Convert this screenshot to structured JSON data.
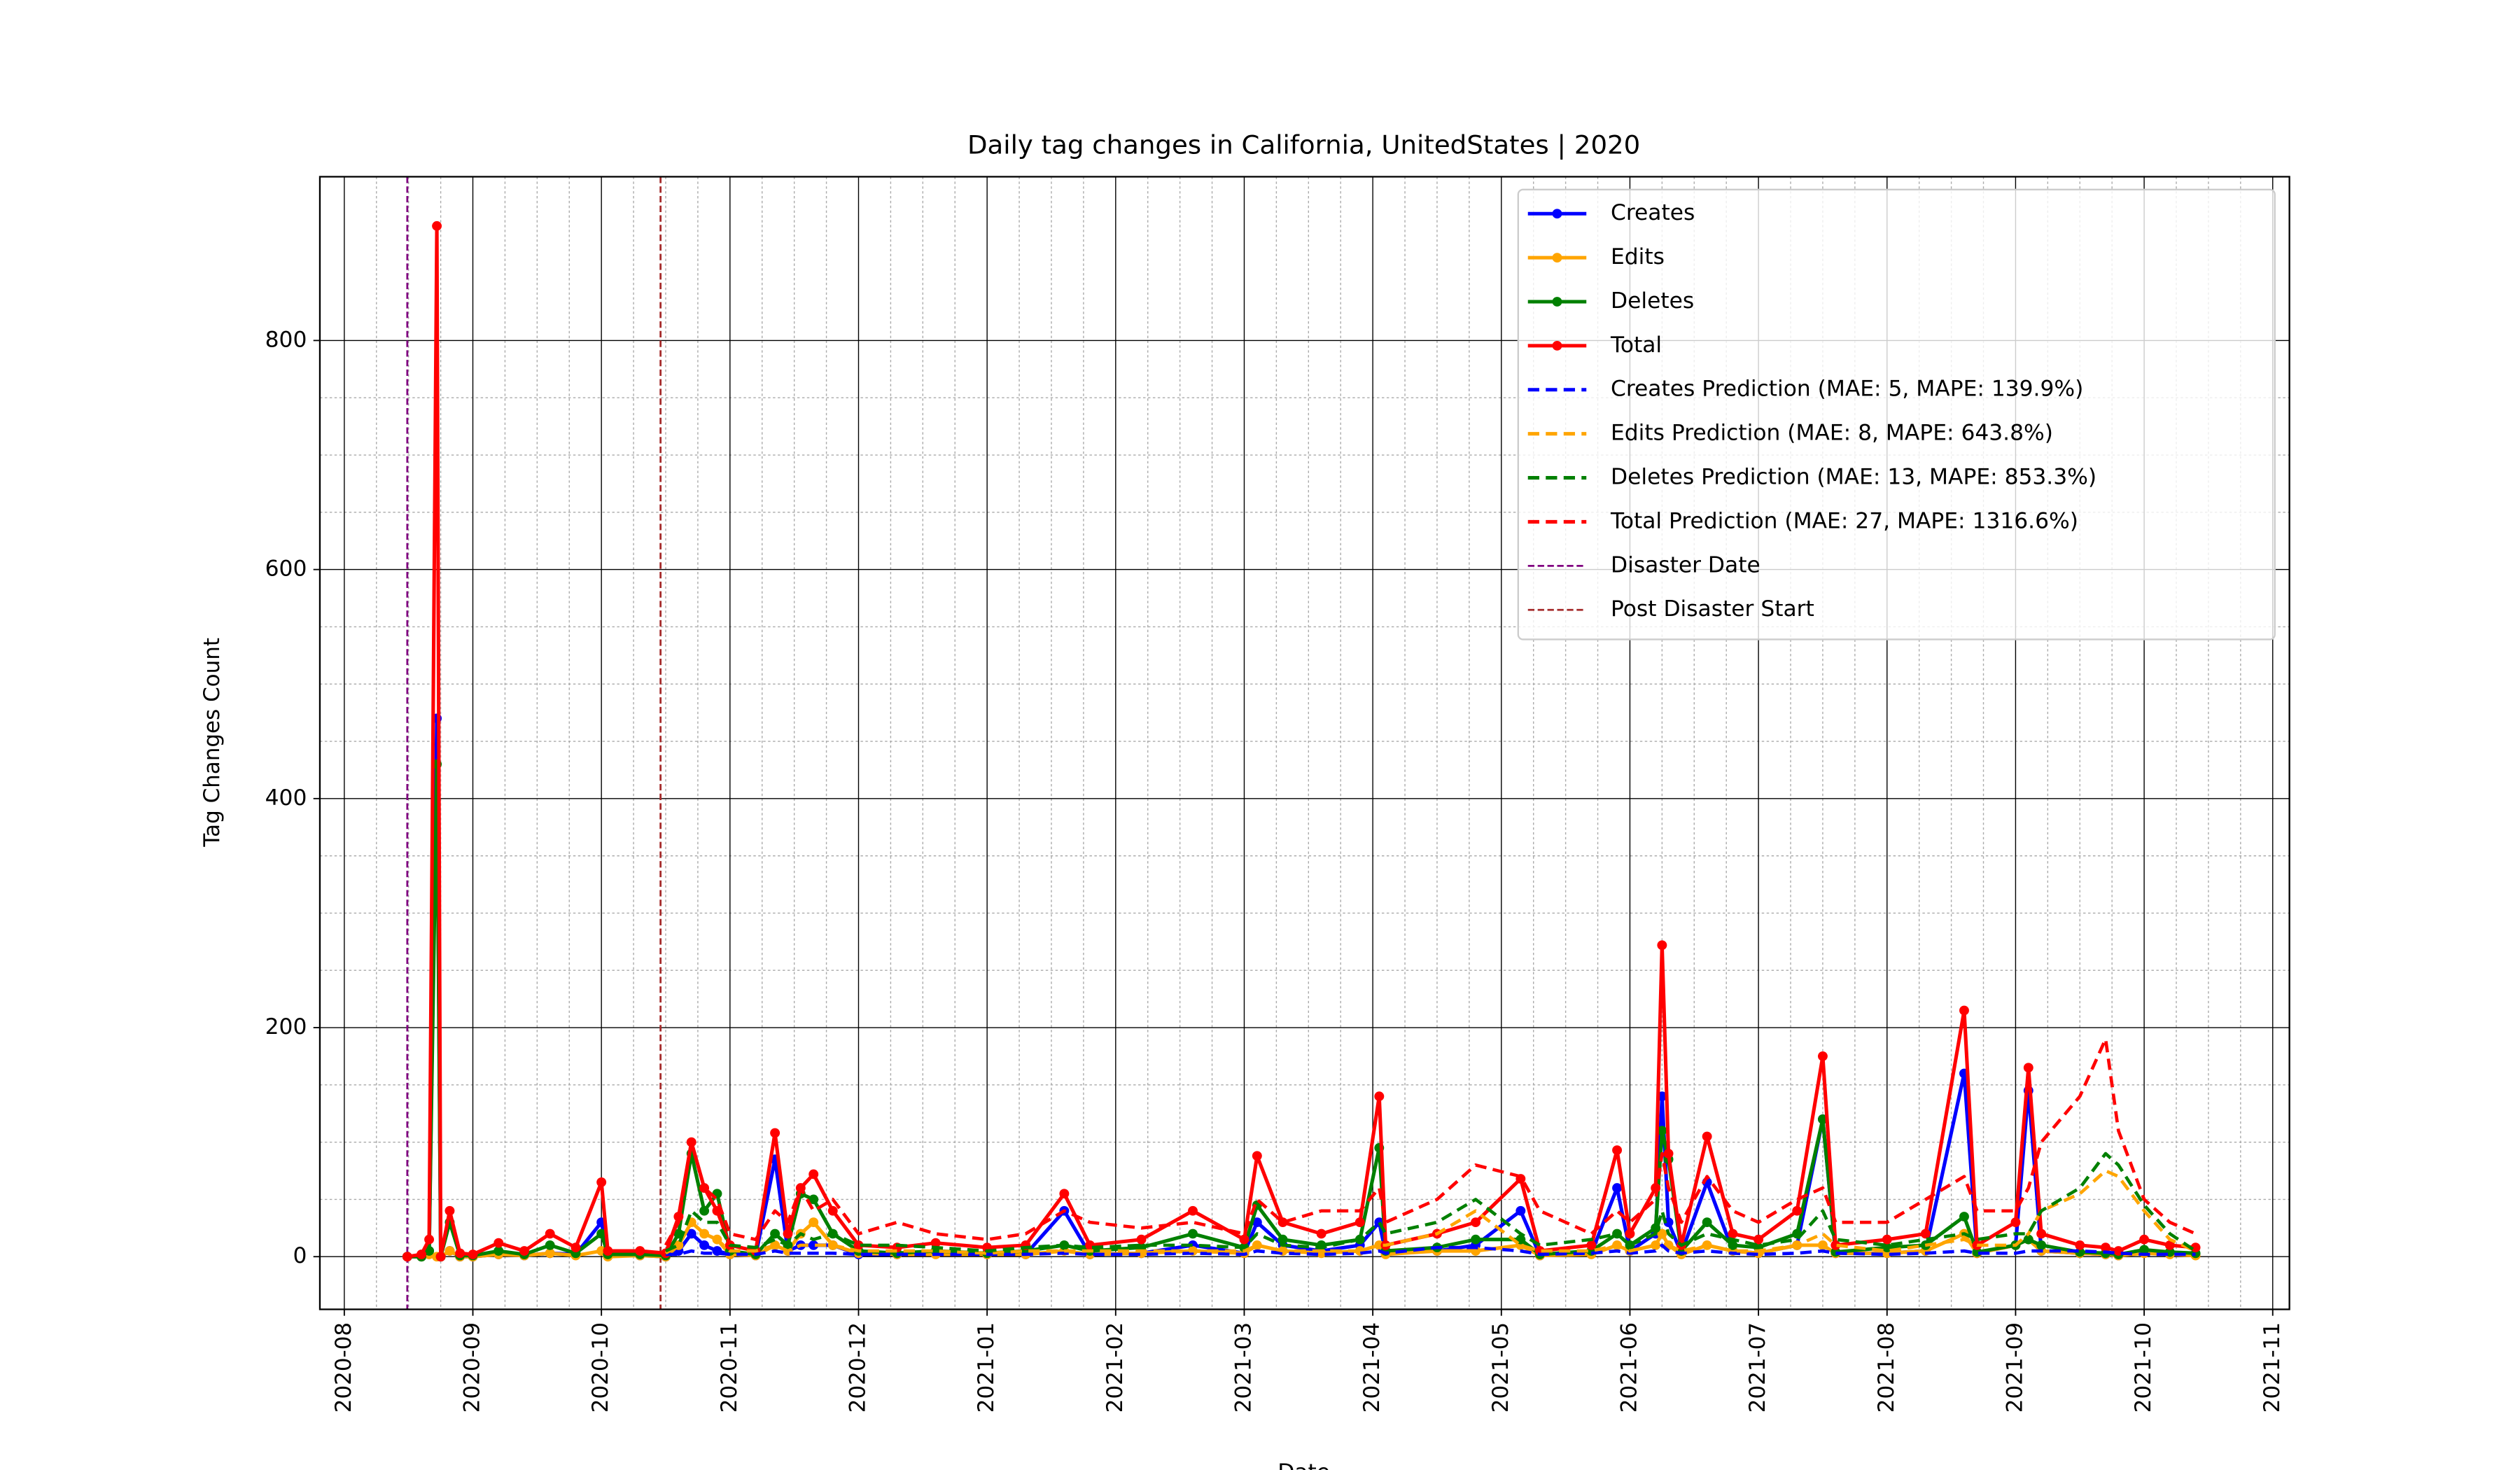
{
  "chart_data": {
    "type": "line",
    "title": "Daily tag changes in California, UnitedStates | 2020",
    "xlabel": "Date",
    "ylabel": "Tag Changes Count",
    "x": [
      0.49,
      0.6,
      0.66,
      0.72,
      0.75,
      0.82,
      0.9,
      1.0,
      1.2,
      1.4,
      1.6,
      1.8,
      2.0,
      2.05,
      2.3,
      2.5,
      2.6,
      2.7,
      2.8,
      2.9,
      3.0,
      3.2,
      3.35,
      3.45,
      3.55,
      3.65,
      3.8,
      4.0,
      4.3,
      4.6,
      5.0,
      5.3,
      5.6,
      5.8,
      6.2,
      6.6,
      7.0,
      7.1,
      7.3,
      7.6,
      7.9,
      8.05,
      8.1,
      8.5,
      8.8,
      9.15,
      9.3,
      9.7,
      9.9,
      10.0,
      10.2,
      10.25,
      10.3,
      10.4,
      10.6,
      10.8,
      11.0,
      11.3,
      11.5,
      11.6,
      12.0,
      12.3,
      12.6,
      12.7,
      13.0,
      13.1,
      13.2,
      13.5,
      13.7,
      13.8,
      14.0,
      14.2,
      14.4
    ],
    "series": [
      {
        "name": "Creates",
        "color": "blue",
        "style": "solid",
        "values": [
          0,
          0,
          5,
          470,
          0,
          5,
          0,
          0,
          2,
          1,
          3,
          2,
          30,
          1,
          1,
          0,
          5,
          20,
          10,
          5,
          2,
          1,
          85,
          5,
          10,
          10,
          10,
          2,
          2,
          3,
          2,
          2,
          40,
          2,
          3,
          10,
          3,
          30,
          10,
          5,
          10,
          30,
          3,
          5,
          10,
          40,
          1,
          3,
          60,
          5,
          20,
          140,
          30,
          3,
          65,
          5,
          3,
          10,
          120,
          3,
          3,
          5,
          160,
          3,
          10,
          145,
          5,
          3,
          2,
          1,
          5,
          3,
          2
        ]
      },
      {
        "name": "Edits",
        "color": "orange",
        "style": "solid",
        "values": [
          0,
          0,
          2,
          0,
          0,
          5,
          0,
          0,
          2,
          1,
          3,
          1,
          5,
          0,
          1,
          0,
          10,
          30,
          20,
          15,
          2,
          1,
          10,
          5,
          20,
          30,
          10,
          3,
          2,
          2,
          2,
          2,
          5,
          2,
          3,
          5,
          3,
          10,
          5,
          3,
          5,
          10,
          2,
          5,
          5,
          10,
          1,
          2,
          10,
          5,
          10,
          20,
          10,
          2,
          10,
          5,
          3,
          10,
          10,
          3,
          3,
          5,
          20,
          3,
          10,
          15,
          5,
          3,
          2,
          1,
          3,
          2,
          1
        ]
      },
      {
        "name": "Deletes",
        "color": "green",
        "style": "solid",
        "values": [
          0,
          0,
          5,
          430,
          0,
          30,
          1,
          1,
          5,
          2,
          10,
          3,
          20,
          2,
          2,
          1,
          20,
          90,
          40,
          55,
          5,
          2,
          20,
          10,
          55,
          50,
          20,
          5,
          3,
          5,
          3,
          5,
          10,
          5,
          8,
          20,
          8,
          45,
          15,
          10,
          15,
          95,
          5,
          8,
          15,
          15,
          2,
          5,
          20,
          10,
          25,
          110,
          85,
          5,
          30,
          10,
          8,
          20,
          120,
          4,
          8,
          10,
          35,
          4,
          10,
          15,
          10,
          4,
          3,
          2,
          6,
          4,
          3
        ]
      },
      {
        "name": "Total",
        "color": "red",
        "style": "solid",
        "values": [
          0,
          2,
          15,
          900,
          0,
          40,
          3,
          2,
          12,
          5,
          20,
          8,
          65,
          5,
          5,
          3,
          35,
          100,
          60,
          40,
          10,
          5,
          108,
          20,
          60,
          72,
          40,
          10,
          8,
          12,
          8,
          10,
          55,
          10,
          15,
          40,
          15,
          88,
          30,
          20,
          30,
          140,
          10,
          20,
          30,
          68,
          5,
          10,
          93,
          20,
          60,
          272,
          90,
          10,
          105,
          20,
          15,
          40,
          175,
          10,
          15,
          20,
          215,
          10,
          30,
          165,
          20,
          10,
          8,
          5,
          15,
          10,
          8
        ]
      },
      {
        "name": "Creates Prediction (MAE: 5, MAPE: 139.9%)",
        "color": "blue",
        "style": "dashed",
        "values": [
          null,
          null,
          null,
          null,
          null,
          null,
          null,
          null,
          null,
          null,
          null,
          null,
          null,
          null,
          null,
          2,
          2,
          5,
          3,
          3,
          2,
          2,
          5,
          3,
          3,
          3,
          3,
          2,
          2,
          2,
          2,
          2,
          3,
          2,
          2,
          3,
          2,
          5,
          3,
          2,
          3,
          5,
          3,
          8,
          8,
          5,
          2,
          3,
          5,
          3,
          5,
          10,
          5,
          3,
          5,
          3,
          2,
          3,
          5,
          3,
          2,
          3,
          5,
          3,
          3,
          5,
          5,
          5,
          4,
          3,
          2,
          2,
          2
        ]
      },
      {
        "name": "Edits Prediction (MAE: 8, MAPE: 643.8%)",
        "color": "orange",
        "style": "dashed",
        "values": [
          null,
          null,
          null,
          null,
          null,
          null,
          null,
          null,
          null,
          null,
          null,
          null,
          null,
          null,
          null,
          3,
          10,
          30,
          20,
          15,
          5,
          5,
          10,
          5,
          10,
          10,
          10,
          5,
          5,
          5,
          3,
          5,
          5,
          5,
          5,
          5,
          5,
          10,
          5,
          5,
          5,
          10,
          10,
          20,
          40,
          10,
          5,
          5,
          10,
          5,
          10,
          20,
          10,
          5,
          10,
          5,
          5,
          10,
          20,
          10,
          5,
          10,
          15,
          10,
          10,
          20,
          40,
          55,
          75,
          70,
          40,
          15,
          5
        ]
      },
      {
        "name": "Deletes Prediction (MAE: 13, MAPE: 853.3%)",
        "color": "green",
        "style": "dashed",
        "values": [
          null,
          null,
          null,
          null,
          null,
          null,
          null,
          null,
          null,
          null,
          null,
          null,
          null,
          null,
          null,
          5,
          10,
          40,
          30,
          30,
          10,
          8,
          15,
          10,
          20,
          15,
          20,
          10,
          10,
          8,
          5,
          8,
          10,
          8,
          10,
          10,
          8,
          20,
          10,
          8,
          15,
          30,
          20,
          30,
          50,
          20,
          10,
          15,
          20,
          10,
          20,
          40,
          20,
          10,
          20,
          15,
          10,
          15,
          40,
          15,
          10,
          15,
          20,
          15,
          20,
          20,
          40,
          60,
          90,
          80,
          45,
          20,
          5
        ]
      },
      {
        "name": "Total Prediction (MAE: 27, MAPE: 1316.6%)",
        "color": "red",
        "style": "dashed",
        "values": [
          null,
          null,
          null,
          null,
          null,
          null,
          null,
          null,
          null,
          null,
          null,
          null,
          null,
          null,
          null,
          10,
          30,
          100,
          60,
          50,
          20,
          15,
          40,
          30,
          60,
          40,
          50,
          20,
          30,
          20,
          15,
          20,
          40,
          30,
          25,
          30,
          20,
          50,
          30,
          40,
          40,
          60,
          30,
          50,
          80,
          70,
          40,
          20,
          40,
          30,
          50,
          90,
          60,
          30,
          70,
          40,
          30,
          50,
          60,
          30,
          30,
          50,
          70,
          40,
          40,
          60,
          100,
          140,
          190,
          110,
          50,
          30,
          20
        ]
      }
    ],
    "vlines": [
      {
        "name": "Disaster Date",
        "color": "purple",
        "x": 0.49
      },
      {
        "name": "Post Disaster Start",
        "color": "brown",
        "x": 2.46
      }
    ],
    "xlim": [
      -0.19,
      15.13
    ],
    "xticks": [
      {
        "value": 0,
        "label": "2020-08"
      },
      {
        "value": 1,
        "label": "2020-09"
      },
      {
        "value": 2,
        "label": "2020-10"
      },
      {
        "value": 3,
        "label": "2020-11"
      },
      {
        "value": 4,
        "label": "2020-12"
      },
      {
        "value": 5,
        "label": "2021-01"
      },
      {
        "value": 6,
        "label": "2021-02"
      },
      {
        "value": 7,
        "label": "2021-03"
      },
      {
        "value": 8,
        "label": "2021-04"
      },
      {
        "value": 9,
        "label": "2021-05"
      },
      {
        "value": 10,
        "label": "2021-06"
      },
      {
        "value": 11,
        "label": "2021-07"
      },
      {
        "value": 12,
        "label": "2021-08"
      },
      {
        "value": 13,
        "label": "2021-09"
      },
      {
        "value": 14,
        "label": "2021-10"
      },
      {
        "value": 15,
        "label": "2021-11"
      }
    ],
    "ylim": [
      -46,
      943
    ],
    "yticks": [
      0,
      200,
      400,
      600,
      800
    ],
    "grid": true,
    "minor_grid": true,
    "legend": "upper right"
  }
}
